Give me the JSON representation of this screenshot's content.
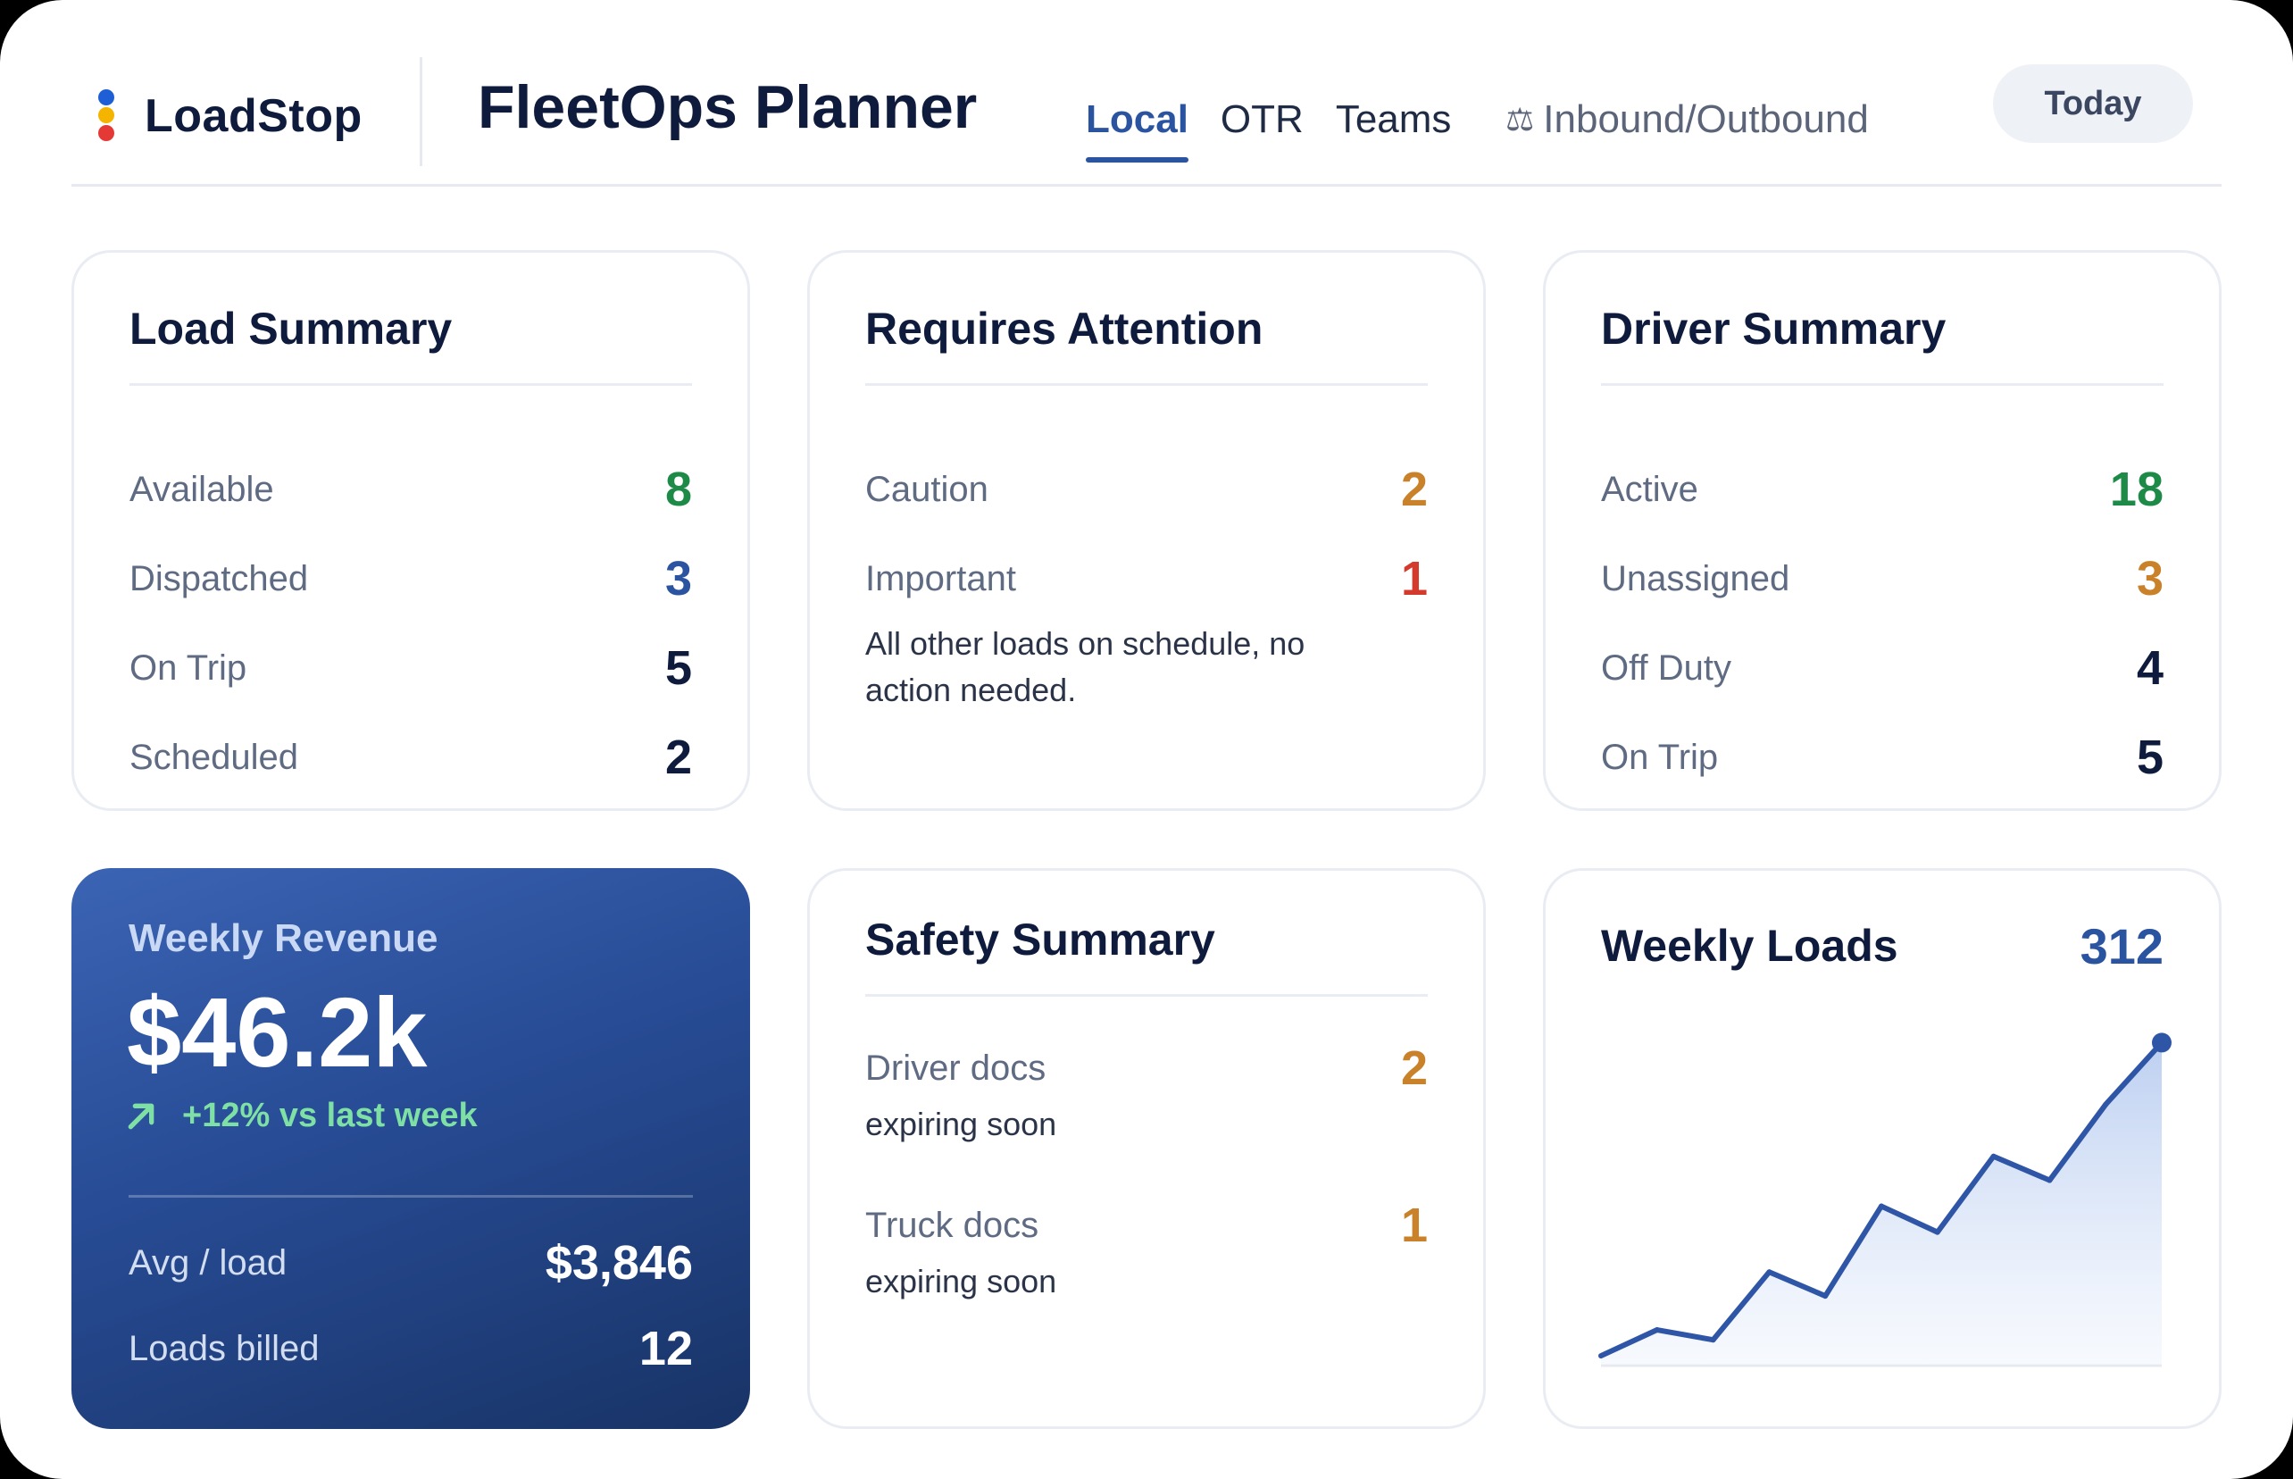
{
  "brand": {
    "name": "LoadStop"
  },
  "app_title": "FleetOps Planner",
  "tabs": [
    {
      "label": "Local",
      "active": true
    },
    {
      "label": "OTR",
      "active": false
    },
    {
      "label": "Teams",
      "active": false
    }
  ],
  "inbound_tab": {
    "label": "Inbound/Outbound",
    "icon": "scale-icon"
  },
  "today_button": "Today",
  "load_summary": {
    "title": "Load Summary",
    "rows": [
      {
        "label": "Available",
        "value": "8"
      },
      {
        "label": "Dispatched",
        "value": "3"
      },
      {
        "label": "On Trip",
        "value": "5"
      },
      {
        "label": "Scheduled",
        "value": "2"
      }
    ]
  },
  "requires_attention": {
    "title": "Requires Attention",
    "rows": [
      {
        "label": "Caution",
        "value": "2"
      },
      {
        "label": "Important",
        "value": "1"
      }
    ],
    "note": "All other loads on schedule, no action needed."
  },
  "driver_summary": {
    "title": "Driver Summary",
    "rows": [
      {
        "label": "Active",
        "value": "18"
      },
      {
        "label": "Unassigned",
        "value": "3"
      },
      {
        "label": "Off Duty",
        "value": "4"
      },
      {
        "label": "On Trip",
        "value": "5"
      }
    ]
  },
  "weekly_revenue": {
    "title": "Weekly Revenue",
    "amount": "$46.2k",
    "change": "+12% vs last week",
    "rows": [
      {
        "label": "Avg / load",
        "value": "$3,846"
      },
      {
        "label": "Loads billed",
        "value": "12"
      }
    ]
  },
  "safety_summary": {
    "title": "Safety Summary",
    "items": [
      {
        "label": "Driver docs",
        "sublabel": "expiring soon",
        "value": "2"
      },
      {
        "label": "Truck docs",
        "sublabel": "expiring soon",
        "value": "1"
      }
    ]
  },
  "weekly_loads": {
    "title": "Weekly Loads",
    "total": "312"
  },
  "colors": {
    "accent": "#2b54a0",
    "green": "#1e8a48",
    "orange": "#c9812a",
    "red": "#d33a2c"
  },
  "chart_data": {
    "type": "area",
    "title": "Weekly Loads",
    "x": [
      1,
      2,
      3,
      4,
      5,
      6,
      7,
      8,
      9,
      10,
      11
    ],
    "values": [
      4,
      17,
      12,
      46,
      34,
      79,
      66,
      104,
      92,
      130,
      161
    ],
    "ylim": [
      0,
      180
    ],
    "grid": false
  }
}
